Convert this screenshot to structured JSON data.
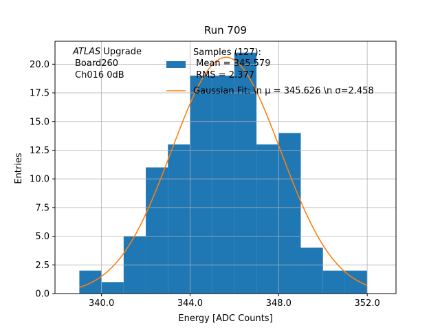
{
  "chart_data": {
    "type": "bar",
    "title": "Run 709",
    "xlabel": "Energy [ADC Counts]",
    "ylabel": "Entries",
    "xlim": [
      337.9,
      353.3
    ],
    "ylim": [
      0,
      22
    ],
    "grid": true,
    "x_ticks": [
      340,
      344,
      348,
      352
    ],
    "x_tick_labels": [
      "340.0",
      "344.0",
      "348.0",
      "352.0"
    ],
    "y_ticks": [
      0,
      2.5,
      5,
      7.5,
      10,
      12.5,
      15,
      17.5,
      20
    ],
    "y_tick_labels": [
      "0.0",
      "2.5",
      "5.0",
      "7.5",
      "10.0",
      "12.5",
      "15.0",
      "17.5",
      "20.0"
    ],
    "annotation": {
      "experiment": "ATLAS",
      "experiment_suffix": " Upgrade",
      "board": "Board260",
      "channel": "Ch016 0dB"
    },
    "colors": {
      "bars": "#1f77b4",
      "fit": "#ff7f0e",
      "grid": "#b0b0b0"
    },
    "series": [
      {
        "name": "Samples (127):\n Mean = 345.579\n RMS = 2.377",
        "type": "histogram",
        "bin_edges": [
          339,
          340,
          341,
          342,
          343,
          344,
          345,
          346,
          347,
          348,
          349,
          350,
          351,
          352
        ],
        "values": [
          2,
          1,
          5,
          11,
          13,
          19,
          19,
          21,
          13,
          14,
          4,
          2,
          2
        ]
      },
      {
        "name": "Gaussian Fit: \\n $\\mu$ = 345.626 \\n $\\sigma$=2.458",
        "type": "line",
        "mu": 345.626,
        "sigma": 2.458,
        "amplitude": 20.6,
        "x_range": [
          339,
          352
        ]
      }
    ],
    "legend": {
      "placement": "top-right",
      "hist_lines": [
        "Samples (127):",
        " Mean = 345.579",
        " RMS = 2.377"
      ],
      "fit_label": "Gaussian Fit: \\n μ = 345.626 \\n σ=2.458"
    }
  }
}
